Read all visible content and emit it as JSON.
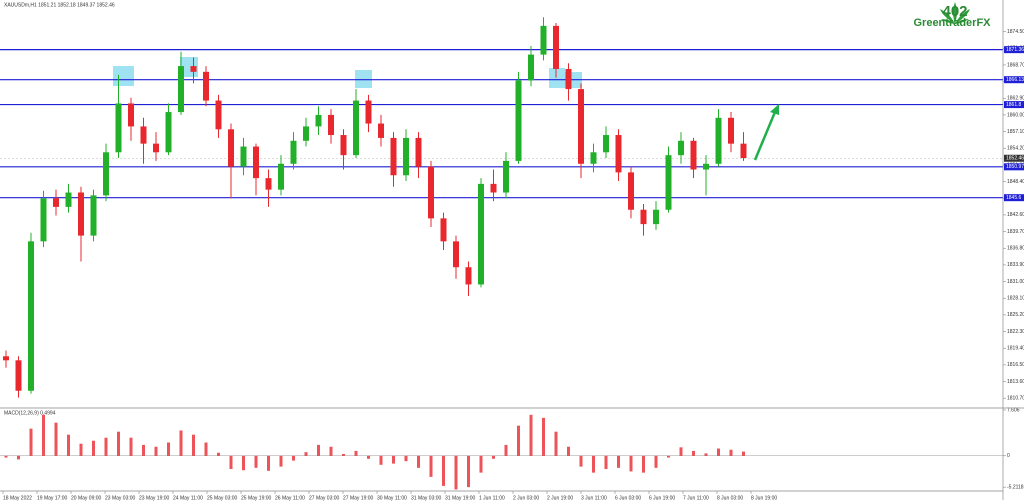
{
  "chart_data": {
    "type": "candlestick",
    "title": "XAUUSDm,H1  1851.21 1852.18 1849.37 1852.46",
    "open": [
      1818.0,
      1817.3,
      1812.0,
      1838.0,
      1845.5,
      1844.0,
      1846.5,
      1839.0,
      1846.0,
      1853.5,
      1862.0,
      1858.0,
      1855.0,
      1853.5,
      1860.5,
      1868.5,
      1867.5,
      1862.5,
      1857.5,
      1851.0,
      1854.5,
      1849.0,
      1847.0,
      1851.5,
      1855.5,
      1858.0,
      1860.0,
      1856.5,
      1853.0,
      1862.5,
      1858.5,
      1856.0,
      1849.5,
      1856.0,
      1851.0,
      1842.0,
      1838.0,
      1833.5,
      1830.5,
      1848.0,
      1846.5,
      1852.0,
      1866.0,
      1870.5,
      1875.5,
      1868.0,
      1864.5,
      1851.5,
      1853.5,
      1856.5,
      1850.0,
      1843.5,
      1841.0,
      1843.5,
      1853.0,
      1855.5,
      1850.5,
      1851.5,
      1859.5,
      1855.0
    ],
    "high": [
      1819.0,
      1818.0,
      1839.5,
      1846.8,
      1847.0,
      1848.0,
      1847.5,
      1847.0,
      1855.0,
      1867.0,
      1863.0,
      1859.5,
      1857.0,
      1862.0,
      1871.0,
      1870.0,
      1868.5,
      1863.5,
      1858.5,
      1856.0,
      1855.0,
      1850.5,
      1853.0,
      1857.0,
      1859.5,
      1861.5,
      1861.0,
      1857.5,
      1864.5,
      1863.5,
      1860.0,
      1857.0,
      1857.5,
      1857.0,
      1852.0,
      1843.0,
      1839.0,
      1834.5,
      1849.0,
      1850.5,
      1853.5,
      1867.5,
      1872.0,
      1877.0,
      1876.0,
      1869.0,
      1865.5,
      1855.0,
      1858.0,
      1857.5,
      1851.0,
      1844.5,
      1845.0,
      1854.5,
      1857.0,
      1856.0,
      1853.0,
      1861.0,
      1860.5,
      1857.0
    ],
    "low": [
      1816.0,
      1810.8,
      1811.5,
      1837.0,
      1842.5,
      1843.0,
      1834.5,
      1838.0,
      1845.0,
      1852.5,
      1855.5,
      1851.5,
      1852.0,
      1853.0,
      1860.0,
      1865.5,
      1861.5,
      1856.0,
      1845.5,
      1849.5,
      1846.0,
      1844.0,
      1846.0,
      1850.5,
      1854.5,
      1856.5,
      1855.0,
      1850.5,
      1852.5,
      1857.0,
      1854.5,
      1847.5,
      1848.5,
      1849.0,
      1840.5,
      1836.5,
      1831.5,
      1828.5,
      1830.0,
      1845.0,
      1845.5,
      1851.5,
      1865.0,
      1869.5,
      1866.5,
      1862.5,
      1849.0,
      1850.0,
      1852.5,
      1848.5,
      1842.0,
      1839.0,
      1840.0,
      1843.0,
      1851.5,
      1849.0,
      1846.0,
      1851.0,
      1853.5,
      1852.0
    ],
    "close": [
      1817.3,
      1812.0,
      1838.0,
      1845.5,
      1844.0,
      1846.5,
      1839.0,
      1846.0,
      1853.5,
      1862.0,
      1858.0,
      1855.0,
      1853.5,
      1860.5,
      1868.5,
      1867.5,
      1862.5,
      1857.5,
      1851.0,
      1854.5,
      1849.0,
      1847.0,
      1851.5,
      1855.5,
      1858.0,
      1860.0,
      1856.5,
      1853.0,
      1862.5,
      1858.5,
      1856.0,
      1849.5,
      1856.0,
      1851.0,
      1842.0,
      1838.0,
      1833.5,
      1830.5,
      1848.0,
      1846.5,
      1852.0,
      1866.0,
      1870.5,
      1875.5,
      1868.0,
      1864.5,
      1851.5,
      1853.5,
      1856.5,
      1850.0,
      1843.5,
      1841.0,
      1843.5,
      1853.0,
      1855.5,
      1850.5,
      1851.5,
      1859.5,
      1855.0,
      1852.5
    ],
    "up_color": "#22b02a",
    "down_color": "#e8282e",
    "ylim": [
      1809,
      1880
    ],
    "yticks": [
      {
        "value": 1874.5,
        "label": "1874.50"
      },
      {
        "value": 1871.6,
        "label": "1871.60"
      },
      {
        "value": 1868.7,
        "label": "1868.70"
      },
      {
        "value": 1865.8,
        "label": "1865.80"
      },
      {
        "value": 1862.9,
        "label": "1862.90"
      },
      {
        "value": 1860,
        "label": "1860.00"
      },
      {
        "value": 1857.1,
        "label": "1857.10"
      },
      {
        "value": 1854.2,
        "label": "1854.20"
      },
      {
        "value": 1851.3,
        "label": "1851.30"
      },
      {
        "value": 1848.4,
        "label": "1848.40"
      },
      {
        "value": 1845.5,
        "label": "1845.50"
      },
      {
        "value": 1842.6,
        "label": "1842.60"
      },
      {
        "value": 1839.7,
        "label": "1839.70"
      },
      {
        "value": 1836.8,
        "label": "1836.80"
      },
      {
        "value": 1833.9,
        "label": "1833.90"
      },
      {
        "value": 1831,
        "label": "1831.00"
      },
      {
        "value": 1828.1,
        "label": "1828.10"
      },
      {
        "value": 1825.2,
        "label": "1825.20"
      },
      {
        "value": 1822.3,
        "label": "1822.30"
      },
      {
        "value": 1819.4,
        "label": "1819.40"
      },
      {
        "value": 1816.5,
        "label": "1816.50"
      },
      {
        "value": 1813.6,
        "label": "1813.60"
      },
      {
        "value": 1810.7,
        "label": "1810.70"
      }
    ],
    "levels": [
      1871.36,
      1866.13,
      1861.8,
      1850.97,
      1845.6
    ],
    "level_color": "#1f1fd6",
    "current_price": 1852.46,
    "x_labels": [
      "18 May 2022",
      "19 May 17:00",
      "20 May 09:00",
      "23 May 03:00",
      "23 May 19:00",
      "24 May 11:00",
      "25 May 03:00",
      "25 May 19:00",
      "26 May 11:00",
      "27 May 03:00",
      "27 May 19:00",
      "30 May 11:00",
      "31 May 03:00",
      "31 May 19:00",
      "1 Jun 11:00",
      "2 Jun 03:00",
      "2 Jun 19:00",
      "3 Jun 11:00",
      "6 Jun 03:00",
      "6 Jun 19:00",
      "7 Jun 11:00",
      "8 Jun 03:00",
      "8 Jun 19:00"
    ],
    "indicator": {
      "type": "bar",
      "title": "MACD(12,26,9) 0.4994",
      "values": [
        -0.3,
        -0.6,
        4.5,
        6.8,
        5.5,
        3.5,
        2.0,
        2.5,
        3.0,
        4.0,
        3.0,
        1.8,
        1.5,
        2.2,
        4.2,
        3.5,
        2.2,
        0.5,
        -2.2,
        -2.4,
        -2.0,
        -2.5,
        -1.8,
        -0.8,
        0.6,
        1.8,
        1.5,
        0.3,
        0.8,
        -0.5,
        -1.5,
        -1.3,
        -0.9,
        -2.0,
        -3.5,
        -5.0,
        -5.6,
        -5.2,
        -2.8,
        -0.5,
        1.8,
        5.0,
        6.8,
        6.3,
        4.0,
        1.5,
        -1.8,
        -2.8,
        -2.2,
        -2.0,
        -2.6,
        -2.8,
        -2.0,
        -0.3,
        1.4,
        0.8,
        0.4,
        1.2,
        1.0,
        0.7
      ],
      "color": "#e8282e",
      "ylim": [
        -5.85,
        7.6
      ],
      "yticks": [
        7.606,
        0,
        -5.2118
      ]
    }
  },
  "logo": {
    "number": "402",
    "name": "GreentraderFX"
  }
}
